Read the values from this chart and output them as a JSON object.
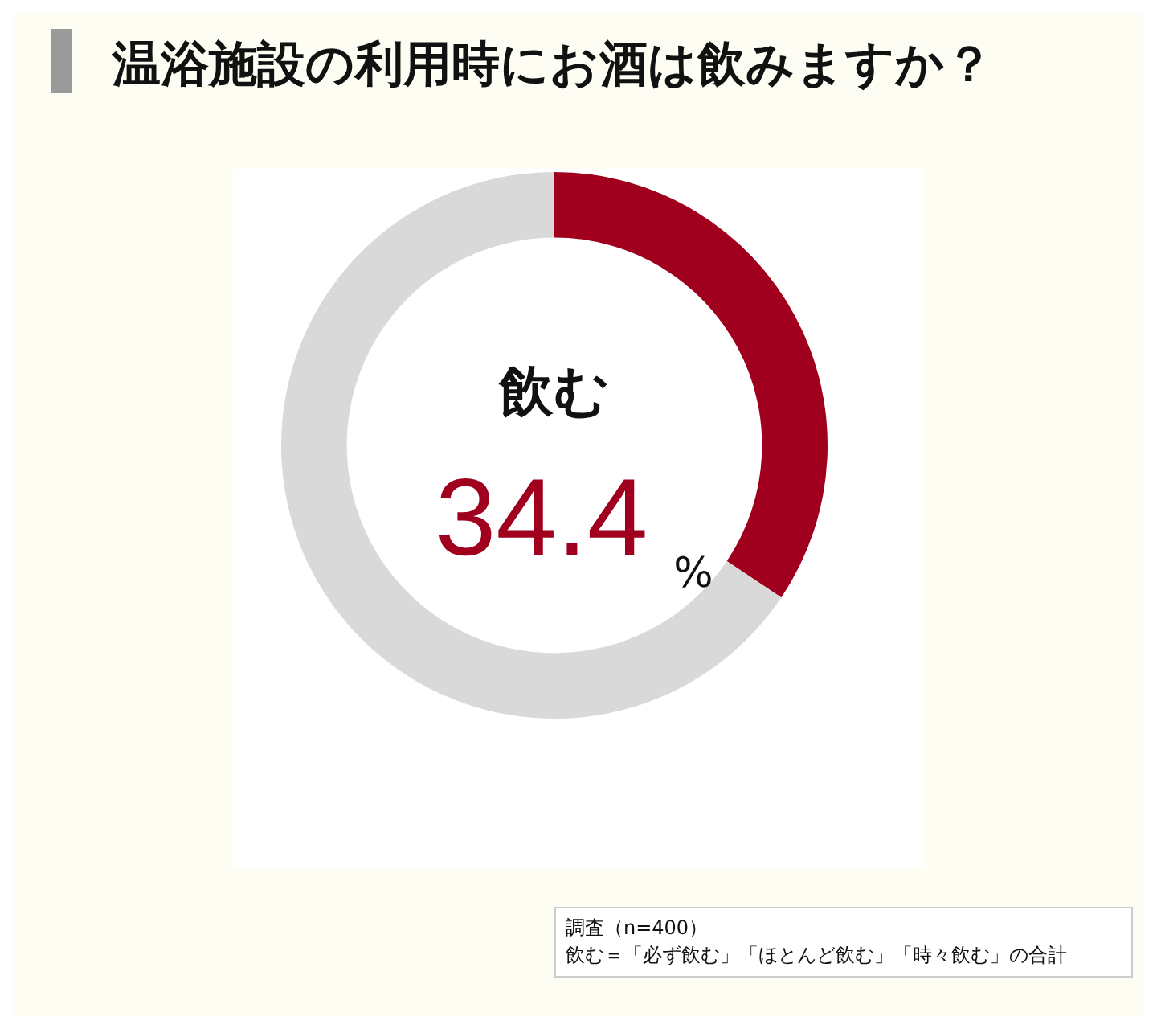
{
  "chart_data": {
    "type": "donut",
    "title": "温浴施設の利用時にお酒は飲みますか？",
    "categories": [
      "飲む",
      null
    ],
    "values": [
      34.4,
      65.6
    ],
    "colors": [
      "#a0001e",
      "#d9d9d9"
    ],
    "value_labels": [
      "34.4 %",
      null
    ],
    "legend": false,
    "annotations": [
      "調査（n=400）",
      "飲む＝「必ず飲む」「ほとんど飲む」「時々飲む」の合計"
    ]
  }
}
